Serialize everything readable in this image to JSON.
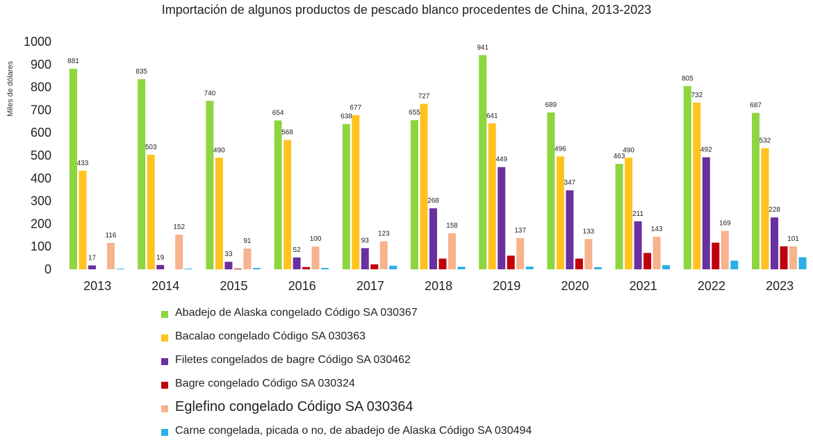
{
  "chart_data": {
    "type": "bar",
    "title": "Importación de algunos productos de pescado blanco procedentes de China, 2013-2023",
    "xlabel": "",
    "ylabel": "Miles de dólares",
    "ylim": [
      0,
      1000
    ],
    "yticks": [
      0,
      100,
      200,
      300,
      400,
      500,
      600,
      700,
      800,
      900,
      1000
    ],
    "grid": false,
    "legend_position": "bottom",
    "categories": [
      "2013",
      "2014",
      "2015",
      "2016",
      "2017",
      "2018",
      "2019",
      "2020",
      "2021",
      "2022",
      "2023"
    ],
    "series": [
      {
        "name": "Abadejo de Alaska congelado Código SA 030367",
        "color": "#8dd63f",
        "labeled": true,
        "values": [
          881,
          835,
          740,
          654,
          638,
          655,
          941,
          689,
          463,
          805,
          687
        ]
      },
      {
        "name": "Bacalao congelado Código SA 030363",
        "color": "#ffc21f",
        "labeled": true,
        "values": [
          433,
          503,
          490,
          568,
          677,
          727,
          641,
          496,
          490,
          732,
          532
        ]
      },
      {
        "name": "Filetes congelados de bagre Código SA 030462",
        "color": "#6a2fa0",
        "labeled": true,
        "values": [
          17,
          19,
          33,
          52,
          93,
          268,
          449,
          347,
          211,
          492,
          228
        ]
      },
      {
        "name": "Bagre congelado Código SA 030324",
        "color": "#c0000b",
        "labeled": false,
        "values": [
          0,
          0,
          3,
          10,
          22,
          47,
          60,
          47,
          72,
          117,
          101
        ]
      },
      {
        "name": "Eglefino congelado Código SA 030364",
        "color": "#f6b38e",
        "labeled": true,
        "values": [
          116,
          152,
          91,
          100,
          123,
          158,
          137,
          133,
          143,
          169,
          101
        ]
      },
      {
        "name": "Carne congelada, picada o no, de abadejo de Alaska Código SA 030494",
        "color": "#29b0e6",
        "labeled": false,
        "values": [
          3,
          3,
          6,
          6,
          16,
          11,
          12,
          9,
          18,
          38,
          53
        ]
      }
    ]
  }
}
